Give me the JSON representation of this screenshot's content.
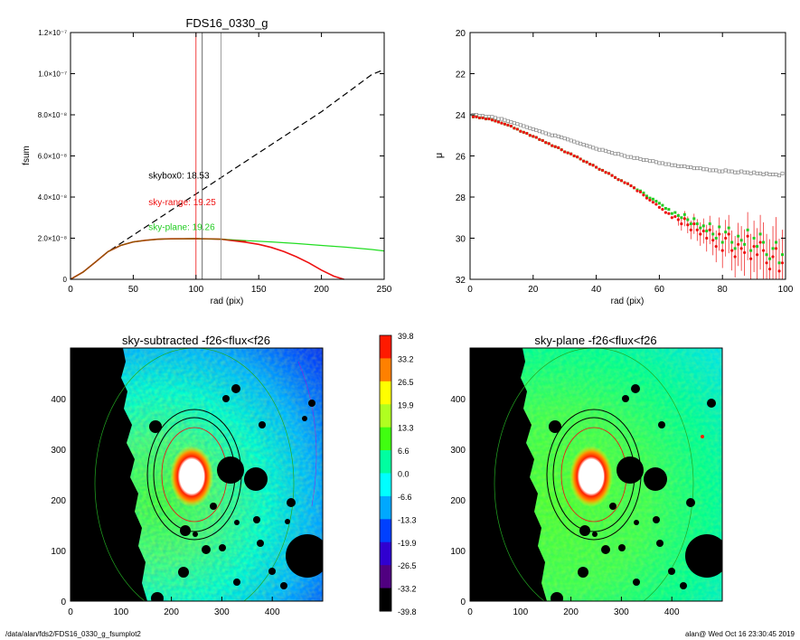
{
  "footer": {
    "path": "/data/alan/fds2/FDS16_0330_g_fsumplot2",
    "stamp": "alan@  Wed Oct 16 23:30:45 2019"
  },
  "colorbar": {
    "labels": [
      "39.8",
      "33.2",
      "26.5",
      "19.9",
      "13.3",
      "6.6",
      "0.0",
      "-6.6",
      "-13.3",
      "-19.9",
      "-26.5",
      "-33.2",
      "-39.8"
    ],
    "colors": [
      "#ff1a00",
      "#ff8000",
      "#ffff00",
      "#b0ff20",
      "#40ff10",
      "#00ffa0",
      "#00ffff",
      "#00a8ff",
      "#0040ff",
      "#3000d0",
      "#500080",
      "#000000"
    ]
  },
  "chart_data": [
    {
      "type": "line",
      "title": "FDS16_0330_g",
      "xlabel": "rad (pix)",
      "ylabel": "fsum",
      "xlim": [
        0,
        250
      ],
      "ylim": [
        0,
        1.2e-07
      ],
      "xticks": [
        "0",
        "50",
        "100",
        "150",
        "200",
        "250"
      ],
      "yticks": [
        {
          "v": 0,
          "label": "0"
        },
        {
          "v": 2e-08,
          "label": "2.0×10⁻⁸"
        },
        {
          "v": 4e-08,
          "label": "4.0×10⁻⁸"
        },
        {
          "v": 6e-08,
          "label": "6.0×10⁻⁸"
        },
        {
          "v": 8e-08,
          "label": "8.0×10⁻⁸"
        },
        {
          "v": 1e-07,
          "label": "1.0×10⁻⁷"
        },
        {
          "v": 1.2e-07,
          "label": "1.2×10⁻⁷"
        }
      ],
      "series": [
        {
          "color": "#000000",
          "dash": true,
          "x": [
            0,
            10,
            20,
            30,
            40,
            50,
            60,
            70,
            80,
            90,
            100,
            110,
            120,
            130,
            140,
            150,
            160,
            170,
            180,
            190,
            200,
            210,
            220,
            230,
            240,
            248
          ],
          "y": [
            0,
            3.5e-09,
            8.5e-09,
            1.35e-08,
            1.75e-08,
            2.15e-08,
            2.55e-08,
            2.95e-08,
            3.35e-08,
            3.75e-08,
            4.15e-08,
            4.55e-08,
            4.95e-08,
            5.35e-08,
            5.75e-08,
            6.15e-08,
            6.55e-08,
            6.95e-08,
            7.35e-08,
            7.75e-08,
            8.15e-08,
            8.6e-08,
            9.05e-08,
            9.5e-08,
            9.95e-08,
            1.015e-07
          ]
        },
        {
          "color": "#22dd22",
          "dash": false,
          "x": [
            0,
            10,
            20,
            30,
            40,
            50,
            60,
            70,
            80,
            100,
            120,
            140,
            160,
            180,
            200,
            220,
            240,
            250
          ],
          "y": [
            0,
            3.5e-09,
            8.5e-09,
            1.35e-08,
            1.65e-08,
            1.82e-08,
            1.9e-08,
            1.95e-08,
            1.97e-08,
            1.98e-08,
            1.95e-08,
            1.88e-08,
            1.82e-08,
            1.74e-08,
            1.65e-08,
            1.56e-08,
            1.45e-08,
            1.38e-08
          ]
        },
        {
          "color": "#ee1111",
          "dash": false,
          "x": [
            0,
            10,
            20,
            30,
            40,
            50,
            60,
            70,
            80,
            100,
            120,
            140,
            150,
            160,
            170,
            180,
            190,
            200,
            210,
            218
          ],
          "y": [
            0,
            3.5e-09,
            8.5e-09,
            1.35e-08,
            1.65e-08,
            1.82e-08,
            1.9e-08,
            1.95e-08,
            1.97e-08,
            1.98e-08,
            1.95e-08,
            1.8e-08,
            1.7e-08,
            1.55e-08,
            1.35e-08,
            1.1e-08,
            8e-09,
            4.5e-09,
            1.5e-09,
            0
          ]
        },
        {
          "color": "#8a5a00",
          "dash": false,
          "x": [
            0,
            10,
            20,
            30,
            40,
            50,
            60,
            70,
            80,
            100,
            120,
            140
          ],
          "y": [
            0,
            3.5e-09,
            8.5e-09,
            1.35e-08,
            1.65e-08,
            1.82e-08,
            1.9e-08,
            1.95e-08,
            1.97e-08,
            1.98e-08,
            1.95e-08,
            1.86e-08
          ]
        }
      ],
      "vlines": [
        {
          "x": 100,
          "color": "#ee1111"
        },
        {
          "x": 105,
          "color": "#444444"
        },
        {
          "x": 120,
          "color": "#888888"
        }
      ],
      "annotations": [
        {
          "text": "skybox0: 18.53",
          "color": "#000000",
          "x": 60,
          "y": 4.9e-08
        },
        {
          "text": "sky-range: 19.25",
          "color": "#ee1111",
          "x": 60,
          "y": 3.6e-08
        },
        {
          "text": "sky-plane: 19.26",
          "color": "#22cc22",
          "x": 60,
          "y": 2.4e-08
        }
      ]
    },
    {
      "type": "scatter",
      "title": "",
      "xlabel": "rad (pix)",
      "ylabel": "μ",
      "xlim": [
        0,
        100
      ],
      "ylim": [
        32,
        20
      ],
      "xticks": [
        "0",
        "20",
        "40",
        "60",
        "80",
        "100"
      ],
      "yticks": [
        "20",
        "22",
        "24",
        "26",
        "28",
        "30",
        "32"
      ],
      "series": [
        {
          "name": "",
          "color": "#888888",
          "marker": "square",
          "x": [
            1,
            2,
            3,
            4,
            5,
            6,
            7,
            8,
            9,
            10,
            11,
            12,
            13,
            14,
            15,
            16,
            17,
            18,
            19,
            20,
            21,
            22,
            23,
            24,
            25,
            26,
            27,
            28,
            29,
            30,
            31,
            32,
            33,
            34,
            35,
            36,
            37,
            38,
            39,
            40,
            41,
            42,
            43,
            44,
            45,
            46,
            47,
            48,
            49,
            50,
            51,
            52,
            53,
            54,
            55,
            56,
            57,
            58,
            59,
            60,
            61,
            62,
            63,
            64,
            65,
            66,
            67,
            68,
            69,
            70,
            71,
            72,
            73,
            74,
            75,
            76,
            77,
            78,
            79,
            80,
            81,
            82,
            83,
            84,
            85,
            86,
            87,
            88,
            89,
            90,
            91,
            92,
            93,
            94,
            95,
            96,
            97,
            98,
            99
          ],
          "y": [
            24.0,
            24.0,
            24.05,
            24.05,
            24.1,
            24.1,
            24.1,
            24.15,
            24.2,
            24.2,
            24.25,
            24.3,
            24.35,
            24.4,
            24.45,
            24.5,
            24.55,
            24.6,
            24.65,
            24.7,
            24.75,
            24.8,
            24.85,
            24.9,
            24.95,
            25.0,
            25.0,
            25.05,
            25.1,
            25.15,
            25.2,
            25.25,
            25.3,
            25.35,
            25.4,
            25.45,
            25.5,
            25.55,
            25.6,
            25.65,
            25.7,
            25.7,
            25.75,
            25.8,
            25.85,
            25.9,
            25.9,
            25.95,
            26.0,
            26.05,
            26.05,
            26.1,
            26.1,
            26.15,
            26.2,
            26.2,
            26.25,
            26.25,
            26.3,
            26.35,
            26.35,
            26.4,
            26.4,
            26.45,
            26.45,
            26.5,
            26.5,
            26.5,
            26.55,
            26.55,
            26.6,
            26.6,
            26.6,
            26.65,
            26.65,
            26.7,
            26.7,
            26.7,
            26.75,
            26.75,
            26.7,
            26.75,
            26.75,
            26.8,
            26.8,
            26.75,
            26.8,
            26.8,
            26.85,
            26.8,
            26.85,
            26.85,
            26.9,
            26.85,
            26.9,
            26.9,
            26.9,
            26.95,
            26.85
          ]
        },
        {
          "name": "",
          "color": "#22cc22",
          "marker": "square",
          "x": [
            1,
            2,
            3,
            4,
            5,
            6,
            7,
            8,
            9,
            10,
            11,
            12,
            13,
            14,
            15,
            16,
            17,
            18,
            19,
            20,
            21,
            22,
            23,
            24,
            25,
            26,
            27,
            28,
            29,
            30,
            31,
            32,
            33,
            34,
            35,
            36,
            37,
            38,
            39,
            40,
            41,
            42,
            43,
            44,
            45,
            46,
            47,
            48,
            49,
            50,
            51,
            52,
            53,
            54,
            55,
            56,
            57,
            58,
            59,
            60,
            61,
            62,
            63,
            64,
            65,
            66,
            67,
            68,
            69,
            70,
            71,
            72,
            73,
            74,
            75,
            76,
            77,
            78,
            79,
            80,
            81,
            82,
            83,
            84,
            85,
            86,
            87,
            88,
            89,
            90,
            91,
            92,
            93,
            94,
            95,
            96,
            97,
            98,
            99
          ],
          "y": [
            24.1,
            24.1,
            24.15,
            24.15,
            24.2,
            24.2,
            24.25,
            24.3,
            24.35,
            24.4,
            24.45,
            24.5,
            24.55,
            24.65,
            24.7,
            24.8,
            24.85,
            24.9,
            25.0,
            25.05,
            25.1,
            25.2,
            25.25,
            25.35,
            25.4,
            25.5,
            25.55,
            25.6,
            25.7,
            25.8,
            25.85,
            25.9,
            26.0,
            26.05,
            26.15,
            26.25,
            26.3,
            26.4,
            26.45,
            26.55,
            26.65,
            26.7,
            26.8,
            26.85,
            26.95,
            27.05,
            27.15,
            27.2,
            27.3,
            27.35,
            27.45,
            27.55,
            27.65,
            27.7,
            27.8,
            27.95,
            28.05,
            28.1,
            28.2,
            28.3,
            28.4,
            28.55,
            28.6,
            28.8,
            28.75,
            28.9,
            29.0,
            28.85,
            29.1,
            29.3,
            29.05,
            29.3,
            29.5,
            29.4,
            29.65,
            29.3,
            29.8,
            30.0,
            29.45,
            30.2,
            29.7,
            29.5,
            30.2,
            30.5,
            29.9,
            30.1,
            30.3,
            29.6,
            30.6,
            30.0,
            30.4,
            29.8,
            30.2,
            30.8,
            31.0,
            30.5,
            30.2,
            31.2,
            30.8
          ]
        },
        {
          "name": "",
          "color": "#ee1111",
          "marker": "circle",
          "x": [
            1,
            2,
            3,
            4,
            5,
            6,
            7,
            8,
            9,
            10,
            11,
            12,
            13,
            14,
            15,
            16,
            17,
            18,
            19,
            20,
            21,
            22,
            23,
            24,
            25,
            26,
            27,
            28,
            29,
            30,
            31,
            32,
            33,
            34,
            35,
            36,
            37,
            38,
            39,
            40,
            41,
            42,
            43,
            44,
            45,
            46,
            47,
            48,
            49,
            50,
            51,
            52,
            53,
            54,
            55,
            56,
            57,
            58,
            59,
            60,
            61,
            62,
            63,
            64,
            65,
            66,
            67,
            68,
            69,
            70,
            71,
            72,
            73,
            74,
            75,
            76,
            77,
            78,
            79,
            80,
            81,
            82,
            83,
            84,
            85,
            86,
            87,
            88,
            89,
            90,
            91,
            92,
            93,
            94,
            95,
            96,
            97,
            98,
            99
          ],
          "y": [
            24.1,
            24.1,
            24.15,
            24.15,
            24.2,
            24.2,
            24.25,
            24.3,
            24.35,
            24.4,
            24.45,
            24.5,
            24.55,
            24.65,
            24.7,
            24.8,
            24.85,
            24.9,
            25.0,
            25.05,
            25.1,
            25.2,
            25.25,
            25.35,
            25.4,
            25.5,
            25.55,
            25.6,
            25.7,
            25.8,
            25.85,
            25.9,
            26.0,
            26.05,
            26.15,
            26.25,
            26.3,
            26.4,
            26.45,
            26.55,
            26.65,
            26.7,
            26.8,
            26.85,
            26.95,
            27.05,
            27.15,
            27.2,
            27.3,
            27.35,
            27.45,
            27.55,
            27.7,
            27.75,
            27.9,
            28.05,
            28.15,
            28.25,
            28.35,
            28.5,
            28.6,
            28.75,
            28.8,
            29.0,
            28.95,
            29.1,
            29.3,
            29.05,
            29.35,
            29.6,
            29.3,
            29.6,
            29.8,
            29.65,
            30.0,
            29.6,
            30.1,
            30.4,
            29.8,
            30.6,
            30.0,
            29.8,
            30.6,
            30.9,
            30.3,
            30.5,
            30.7,
            29.9,
            31.0,
            30.4,
            30.8,
            30.2,
            30.6,
            31.2,
            31.5,
            30.9,
            30.5,
            31.6,
            31.2
          ]
        }
      ]
    },
    {
      "type": "heatmap",
      "title": "sky-subtracted -f26<flux<f26",
      "xlim": [
        0,
        500
      ],
      "ylim": [
        0,
        500
      ],
      "xticks": [
        "0",
        "100",
        "200",
        "300",
        "400"
      ],
      "yticks": [
        "0",
        "100",
        "200",
        "300",
        "400"
      ]
    },
    {
      "type": "heatmap",
      "title": "sky-plane -f26<flux<f26",
      "xlim": [
        0,
        500
      ],
      "ylim": [
        0,
        500
      ],
      "xticks": [
        "0",
        "100",
        "200",
        "300",
        "400"
      ],
      "yticks": [
        "0",
        "100",
        "200",
        "300",
        "400"
      ]
    }
  ]
}
